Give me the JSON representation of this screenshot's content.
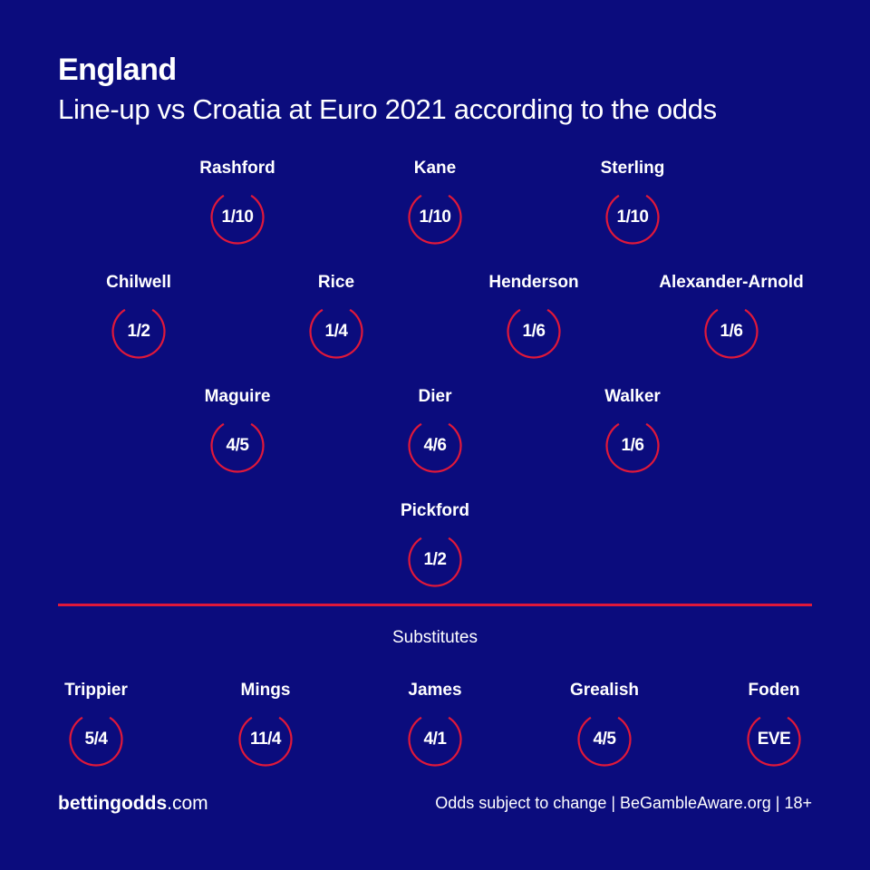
{
  "header": {
    "title": "England",
    "subtitle": "Line-up vs Croatia at Euro 2021 according to the odds"
  },
  "colors": {
    "background": "#0b0c7d",
    "accent": "#e0183a",
    "text": "#ffffff"
  },
  "lineup": {
    "forwards": [
      {
        "name": "Rashford",
        "odds": "1/10"
      },
      {
        "name": "Kane",
        "odds": "1/10"
      },
      {
        "name": "Sterling",
        "odds": "1/10"
      }
    ],
    "midfielders": [
      {
        "name": "Chilwell",
        "odds": "1/2"
      },
      {
        "name": "Rice",
        "odds": "1/4"
      },
      {
        "name": "Henderson",
        "odds": "1/6"
      },
      {
        "name": "Alexander-Arnold",
        "odds": "1/6"
      }
    ],
    "defenders": [
      {
        "name": "Maguire",
        "odds": "4/5"
      },
      {
        "name": "Dier",
        "odds": "4/6"
      },
      {
        "name": "Walker",
        "odds": "1/6"
      }
    ],
    "goalkeeper": [
      {
        "name": "Pickford",
        "odds": "1/2"
      }
    ]
  },
  "substitutes": {
    "heading": "Substitutes",
    "players": [
      {
        "name": "Trippier",
        "odds": "5/4"
      },
      {
        "name": "Mings",
        "odds": "11/4"
      },
      {
        "name": "James",
        "odds": "4/1"
      },
      {
        "name": "Grealish",
        "odds": "4/5"
      },
      {
        "name": "Foden",
        "odds": "EVE"
      }
    ]
  },
  "footer": {
    "brand_bold": "bettingodds",
    "brand_suffix": ".com",
    "note": "Odds subject to change | BeGambleAware.org | 18+"
  }
}
